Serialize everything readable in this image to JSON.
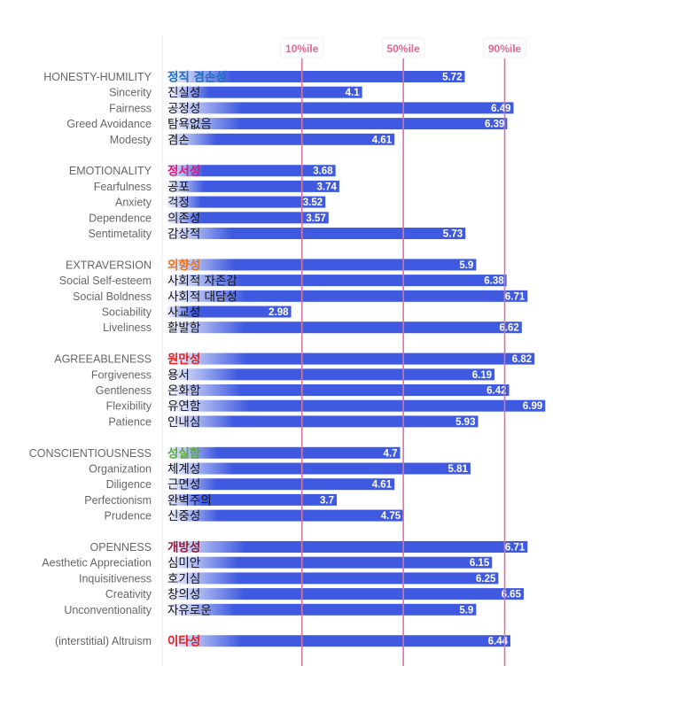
{
  "chart_data": {
    "type": "bar",
    "orientation": "horizontal",
    "percentile_markers": [
      {
        "label": "10%ile",
        "value": 3.15
      },
      {
        "label": "50%ile",
        "value": 4.75
      },
      {
        "label": "90%ile",
        "value": 6.35
      }
    ],
    "colors": {
      "bar": "#3f5ae0",
      "bar_fade": "#ffffff",
      "marker_line": "#d4779e",
      "marker_label": "#e0678f",
      "value_label": "#ffffff",
      "english_label": "#666666",
      "korean_label": "#111111"
    },
    "groups": [
      {
        "english": "HONESTY-HUMILITY",
        "korean": "정직 겸손성",
        "color": "#1f6fbf",
        "value": 5.72,
        "facets": [
          {
            "english": "Sincerity",
            "korean": "진실성",
            "value": 4.1
          },
          {
            "english": "Fairness",
            "korean": "공정성",
            "value": 6.49
          },
          {
            "english": "Greed Avoidance",
            "korean": "탐욕없음",
            "value": 6.39
          },
          {
            "english": "Modesty",
            "korean": "겸손",
            "value": 4.61
          }
        ]
      },
      {
        "english": "EMOTIONALITY",
        "korean": "정서성",
        "color": "#d81b7a",
        "value": 3.68,
        "facets": [
          {
            "english": "Fearfulness",
            "korean": "공포",
            "value": 3.74
          },
          {
            "english": "Anxiety",
            "korean": "걱정",
            "value": 3.52
          },
          {
            "english": "Dependence",
            "korean": "의존성",
            "value": 3.57
          },
          {
            "english": "Sentimetality",
            "korean": "감상적",
            "value": 5.73
          }
        ]
      },
      {
        "english": "EXTRAVERSION",
        "korean": "외향성",
        "color": "#e8741a",
        "value": 5.9,
        "facets": [
          {
            "english": "Social Self-esteem",
            "korean": "사회적 자존감",
            "value": 6.38
          },
          {
            "english": "Social Boldness",
            "korean": "사회적 대담성",
            "value": 6.71
          },
          {
            "english": "Sociability",
            "korean": "사교성",
            "value": 2.98
          },
          {
            "english": "Liveliness",
            "korean": "활발함",
            "value": 6.62
          }
        ]
      },
      {
        "english": "AGREEABLENESS",
        "korean": "원만성",
        "color": "#e0211f",
        "value": 6.82,
        "facets": [
          {
            "english": "Forgiveness",
            "korean": "용서",
            "value": 6.19
          },
          {
            "english": "Gentleness",
            "korean": "온화함",
            "value": 6.42
          },
          {
            "english": "Flexibility",
            "korean": "유연함",
            "value": 6.99
          },
          {
            "english": "Patience",
            "korean": "인내심",
            "value": 5.93
          }
        ]
      },
      {
        "english": "CONSCIENTIOUSNESS",
        "korean": "성실함",
        "color": "#5aa83a",
        "value": 4.7,
        "facets": [
          {
            "english": "Organization",
            "korean": "체계성",
            "value": 5.81
          },
          {
            "english": "Diligence",
            "korean": "근면성",
            "value": 4.61
          },
          {
            "english": "Perfectionism",
            "korean": "완벽주의",
            "value": 3.7
          },
          {
            "english": "Prudence",
            "korean": "신중성",
            "value": 4.75
          }
        ]
      },
      {
        "english": "OPENNESS",
        "korean": "개방성",
        "color": "#8e1c3a",
        "value": 6.71,
        "facets": [
          {
            "english": "Aesthetic Appreciation",
            "korean": "심미안",
            "value": 6.15
          },
          {
            "english": "Inquisitiveness",
            "korean": "호기심",
            "value": 6.25
          },
          {
            "english": "Creativity",
            "korean": "창의성",
            "value": 6.65
          },
          {
            "english": "Unconventionality",
            "korean": "자유로운",
            "value": 5.9
          }
        ]
      },
      {
        "english": "(interstitial) Altruism",
        "korean": "이타성",
        "color": "#e0211f",
        "value": 6.44,
        "facets": []
      }
    ]
  }
}
